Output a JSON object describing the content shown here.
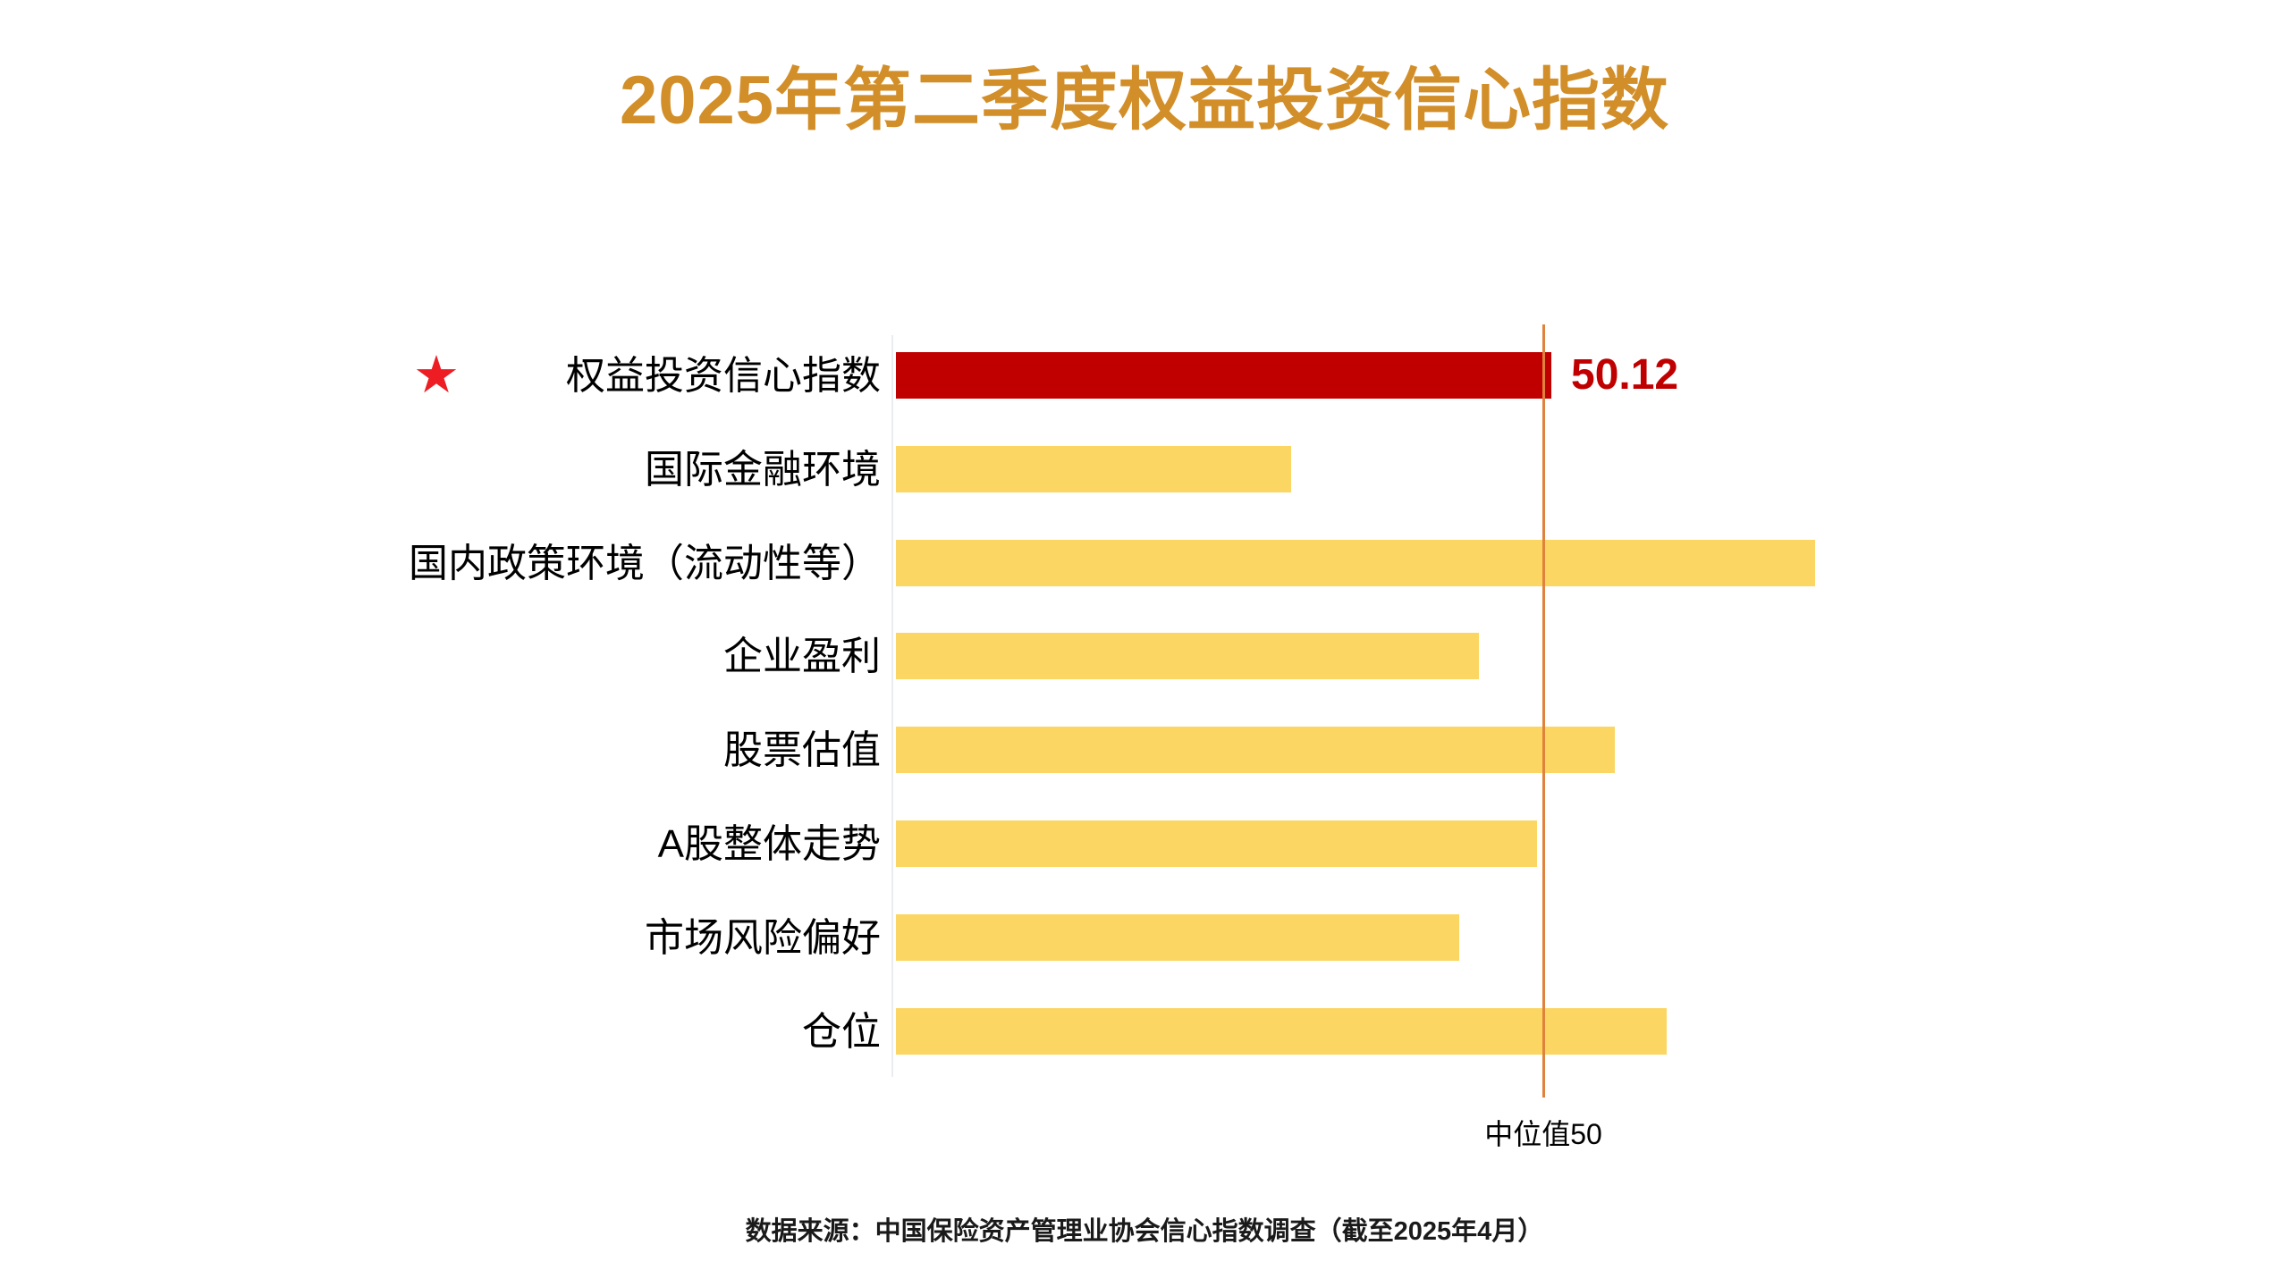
{
  "title": "2025年第二季度权益投资信心指数",
  "footer": "数据来源：中国保险资产管理业协会信心指数调查（截至2025年4月）",
  "chart_data": {
    "type": "bar",
    "orientation": "horizontal",
    "title": "2025年第二季度权益投资信心指数",
    "categories": [
      "权益投资信心指数",
      "国际金融环境",
      "国内政策环境（流动性等）",
      "企业盈利",
      "股票估值",
      "A股整体走势",
      "市场风险偏好",
      "仓位"
    ],
    "values": [
      50.12,
      46.1,
      54.2,
      49.0,
      51.1,
      49.9,
      48.7,
      51.9
    ],
    "value_labels": [
      "50.12",
      "",
      "",
      "",
      "",
      "",
      "",
      ""
    ],
    "highlight_index": 0,
    "highlight_marker": "★",
    "xlim": [
      40,
      57
    ],
    "grid": false,
    "legend": false,
    "reference_line": {
      "value": 50,
      "label": "中位值50"
    },
    "colors": {
      "bar": "#FCD662",
      "highlight_bar": "#C00000",
      "value_label": "#C00000",
      "reference_line": "#E0813C",
      "marker": "#EE1C23",
      "title": "#D28E28",
      "text": "#000000"
    }
  }
}
